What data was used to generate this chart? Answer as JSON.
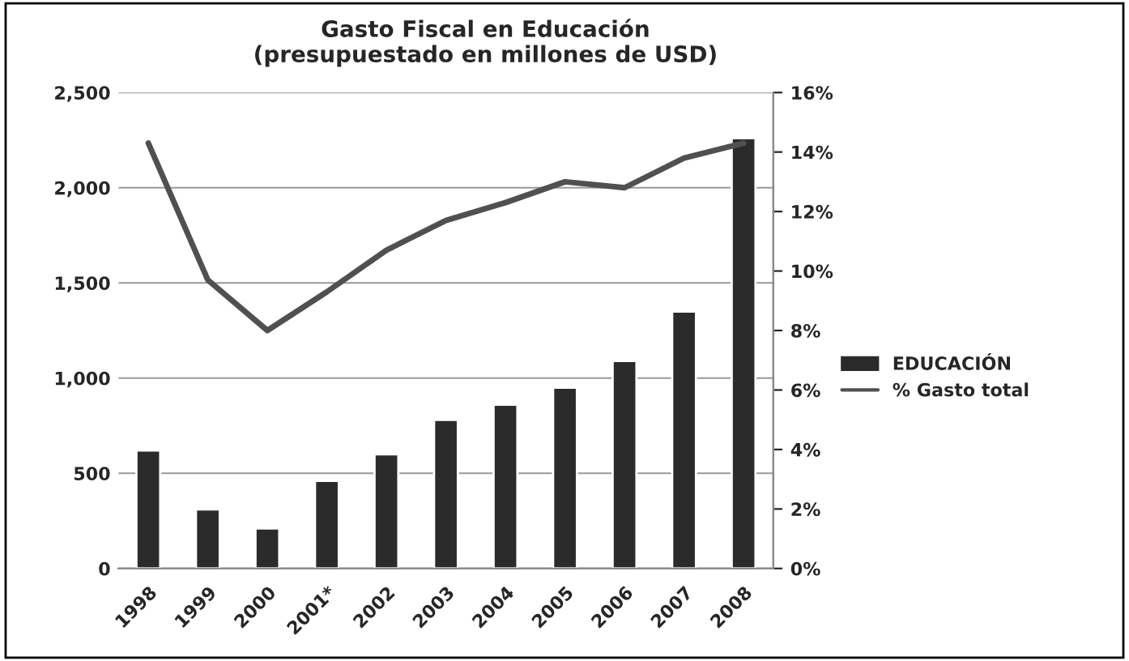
{
  "chart_data": {
    "type": "bar",
    "title": "Gasto Fiscal en Educación\n(presupuestado en millones de USD)",
    "categories": [
      "1998",
      "1999",
      "2000",
      "2001*",
      "2002",
      "2003",
      "2004",
      "2005",
      "2006",
      "2007",
      "2008"
    ],
    "series": [
      {
        "name": "EDUCACIÓN",
        "color": "#2b2b2b",
        "values": [
          620,
          310,
          210,
          460,
          600,
          780,
          860,
          950,
          1090,
          1350,
          2260
        ]
      },
      {
        "name": "% Gasto total",
        "type": "line",
        "axis": "y2",
        "color": "#505050",
        "values": [
          14.3,
          9.7,
          8.0,
          9.3,
          10.7,
          11.7,
          12.3,
          13.0,
          12.8,
          13.8,
          14.3
        ]
      }
    ],
    "ylim": [
      0,
      2500
    ],
    "yticks": [
      {
        "value": 0,
        "label": "0"
      },
      {
        "value": 500,
        "label": "500"
      },
      {
        "value": 1000,
        "label": "1,000"
      },
      {
        "value": 1500,
        "label": "1,500"
      },
      {
        "value": 2000,
        "label": "2,000"
      },
      {
        "value": 2500,
        "label": "2,500"
      }
    ],
    "y2lim": [
      0,
      16
    ],
    "y2ticks": [
      {
        "value": 0,
        "label": "0%"
      },
      {
        "value": 2,
        "label": "2%"
      },
      {
        "value": 4,
        "label": "4%"
      },
      {
        "value": 6,
        "label": "6%"
      },
      {
        "value": 8,
        "label": "8%"
      },
      {
        "value": 10,
        "label": "10%"
      },
      {
        "value": 12,
        "label": "12%"
      },
      {
        "value": 14,
        "label": "14%"
      },
      {
        "value": 16,
        "label": "16%"
      }
    ],
    "grid": "y",
    "legend": "right"
  }
}
